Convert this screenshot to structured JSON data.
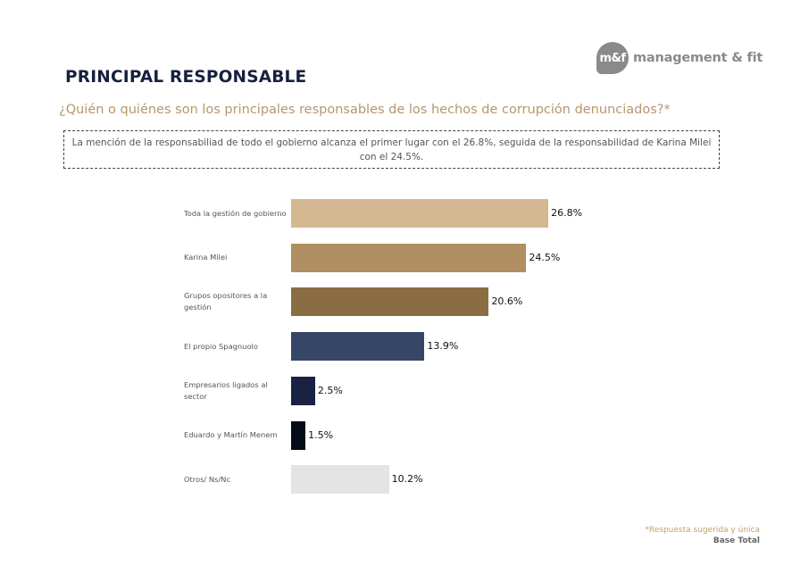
{
  "brand": {
    "badge": "m&f",
    "name": "management & fit"
  },
  "header": {
    "title": "PRINCIPAL RESPONSABLE",
    "question": "¿Quién o quiénes son los principales responsables de los hechos de corrupción denunciados?*"
  },
  "summary": "La mención de la responsabiliad de todo el gobierno alcanza el primer lugar con el 26.8%, seguida de la responsabilidad de Karina Milei con el 24.5%.",
  "chart_data": {
    "type": "bar",
    "orientation": "horizontal",
    "title": "",
    "xlabel": "",
    "ylabel": "",
    "xlim": [
      0,
      30
    ],
    "grid": false,
    "legend": "none",
    "categories": [
      "Toda la gestión de gobierno",
      "Karina Milei",
      "Grupos opositores a la gestión",
      "El propio Spagnuolo",
      "Empresarios ligados al sector",
      "Eduardo y Martín Menem",
      "Otros/ Ns/Nc"
    ],
    "values": [
      26.8,
      24.5,
      20.6,
      13.9,
      2.5,
      1.5,
      10.2
    ],
    "value_labels": [
      "26.8%",
      "24.5%",
      "20.6%",
      "13.9%",
      "2.5%",
      "1.5%",
      "10.2%"
    ],
    "colors": [
      "#d4b891",
      "#b18f62",
      "#8b6d43",
      "#364666",
      "#1a2244",
      "#050b17",
      "#e4e4e4"
    ]
  },
  "footer": {
    "note": "*Respuesta sugerida y única",
    "base": "Base Total"
  }
}
